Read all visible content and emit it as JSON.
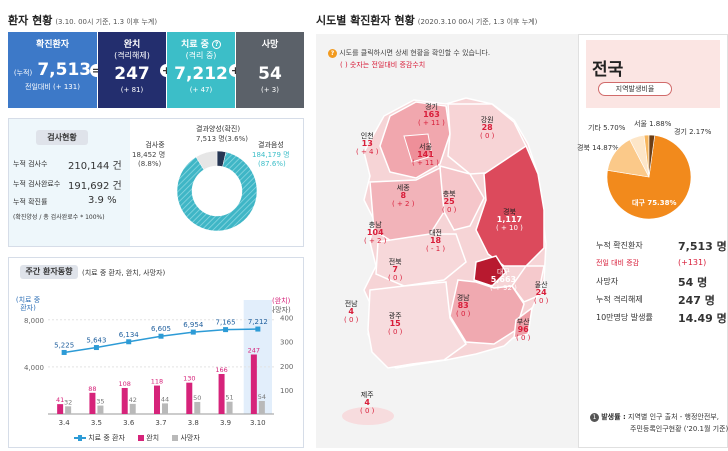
{
  "patient_status": {
    "title": "환자 현황",
    "subtitle": "(3.10. 00시 기준, 1.3 이후 누계)",
    "confirmed": {
      "label": "확진환자",
      "prefix": "(누적)",
      "value": "7,513",
      "change": "전일대비 (+ 131)"
    },
    "released": {
      "label": "완치",
      "label2": "(격리해제)",
      "value": "247",
      "change": "(+ 81)"
    },
    "treatment": {
      "label": "치료 중",
      "label2": "(격리 중)",
      "value": "7,212",
      "change": "(+ 47)"
    },
    "deaths": {
      "label": "사망",
      "value": "54",
      "change": "(+ 3)"
    },
    "op_equals": "=",
    "op_plus": "+"
  },
  "testing": {
    "title": "검사현황",
    "rows": [
      {
        "label": "누적 검사수",
        "value": "210,144 건"
      },
      {
        "label": "누적 검사완료수",
        "value": "191,692 건"
      },
      {
        "label": "누적 확진률",
        "value": "3.9 %"
      }
    ],
    "note": "(확진양성 / 총 검사완료수 * 100%)",
    "donut": {
      "in_progress_label": "검사중",
      "in_progress_value": "18,452 명",
      "in_progress_pct": "(8.8%)",
      "positive_label": "결과양성(확진)",
      "positive_value": "7,513 명(3.6%)",
      "negative_label": "결과음성",
      "negative_value": "184,179 명",
      "negative_pct": "(87.6%)"
    }
  },
  "weekly": {
    "title": "주간 환자동향",
    "subtitle": "(치료 중 환자, 완치, 사망자)",
    "left_axis_label": "(치료 중 환자)",
    "right_axis_label_1": "(완치)",
    "right_axis_label_2": "(사망자)",
    "legend": [
      "치료 중 환자",
      "완치",
      "사망자"
    ]
  },
  "chart_data": {
    "type": "bar",
    "categories": [
      "3.4",
      "3.5",
      "3.6",
      "3.7",
      "3.8",
      "3.9",
      "3.10"
    ],
    "series": [
      {
        "name": "치료 중 환자",
        "type": "line",
        "axis": "left",
        "values": [
          5225,
          5643,
          6134,
          6605,
          6954,
          7165,
          7212
        ]
      },
      {
        "name": "완치",
        "type": "bar",
        "axis": "right",
        "values": [
          41,
          88,
          108,
          118,
          130,
          166,
          247
        ]
      },
      {
        "name": "사망자",
        "type": "bar",
        "axis": "right",
        "values": [
          32,
          35,
          42,
          44,
          50,
          51,
          54
        ]
      }
    ],
    "left_ticks": [
      "8,000",
      "4,000"
    ],
    "right_ticks": [
      "400",
      "300",
      "200",
      "100"
    ],
    "ylim_left": [
      0,
      9000
    ],
    "ylim_right": [
      0,
      440
    ]
  },
  "map": {
    "title": "시도별 확진환자 현황",
    "subtitle": "(2020.3.10 00시 기준, 1.3 이후 누계)",
    "hint1": "시도를 클릭하시면 상세 현황을 확인할 수 있습니다.",
    "hint2": "( ) 숫자는 전일대비 증감수치",
    "regions": [
      {
        "name": "경기",
        "value": "163",
        "change": "( + 11 )"
      },
      {
        "name": "강원",
        "value": "28",
        "change": "( 0 )"
      },
      {
        "name": "인천",
        "value": "13",
        "change": "( + 4 )"
      },
      {
        "name": "서울",
        "value": "141",
        "change": "( + 11 )"
      },
      {
        "name": "세종",
        "value": "8",
        "change": "( + 2 )"
      },
      {
        "name": "충북",
        "value": "25",
        "change": "( 0 )"
      },
      {
        "name": "경북",
        "value": "1,117",
        "change": "( + 10 )"
      },
      {
        "name": "충남",
        "value": "104",
        "change": "( + 2 )"
      },
      {
        "name": "대전",
        "value": "18",
        "change": "( - 1 )"
      },
      {
        "name": "전북",
        "value": "7",
        "change": "( 0 )"
      },
      {
        "name": "대구",
        "value": "5,663",
        "change": "( + 92 )"
      },
      {
        "name": "울산",
        "value": "24",
        "change": "( 0 )"
      },
      {
        "name": "전남",
        "value": "4",
        "change": "( 0 )"
      },
      {
        "name": "광주",
        "value": "15",
        "change": "( 0 )"
      },
      {
        "name": "경남",
        "value": "83",
        "change": "( 0 )"
      },
      {
        "name": "부산",
        "value": "96",
        "change": "( 0 )"
      },
      {
        "name": "제주",
        "value": "4",
        "change": "( 0 )"
      }
    ]
  },
  "national": {
    "title": "전국",
    "pill": "지역발생비율",
    "pie": [
      {
        "name": "대구",
        "pct": 75.38,
        "label": "대구 75.38%"
      },
      {
        "name": "경북",
        "pct": 14.87,
        "label": "경북 14.87%"
      },
      {
        "name": "기타",
        "pct": 5.7,
        "label": "기타 5.70%"
      },
      {
        "name": "서울",
        "pct": 1.88,
        "label": "서울 1.88%"
      },
      {
        "name": "경기",
        "pct": 2.17,
        "label": "경기 2.17%"
      }
    ],
    "stats": [
      {
        "label": "누적 확진환자",
        "value": "7,513 명"
      },
      {
        "label": "전일 대비 증감",
        "value": "(+131)"
      },
      {
        "label": "사망자",
        "value": "54 명"
      },
      {
        "label": "누적 격리해제",
        "value": "247 명"
      },
      {
        "label": "10만명당 발생률",
        "value": "14.49 명"
      }
    ],
    "footnote_num": "1",
    "footnote_bold": "발생률 :",
    "footnote_text1": "지역별 인구 출처 - 행정안전부,",
    "footnote_text2": "주민등록인구현황 ('20.1월 기준)"
  },
  "colors": {
    "blue": "#3d79c8",
    "navy": "#232e6e",
    "teal": "#3cbec8",
    "gray": "#5b6169",
    "bar_released": "#d6237a",
    "bar_deaths": "#b9b9b9",
    "line": "#2d9bd6",
    "map_dark": "#d8324a",
    "pie_orange": "#f28a1c",
    "pie_light": "#fbc989",
    "pie_brown": "#6b3d15"
  }
}
